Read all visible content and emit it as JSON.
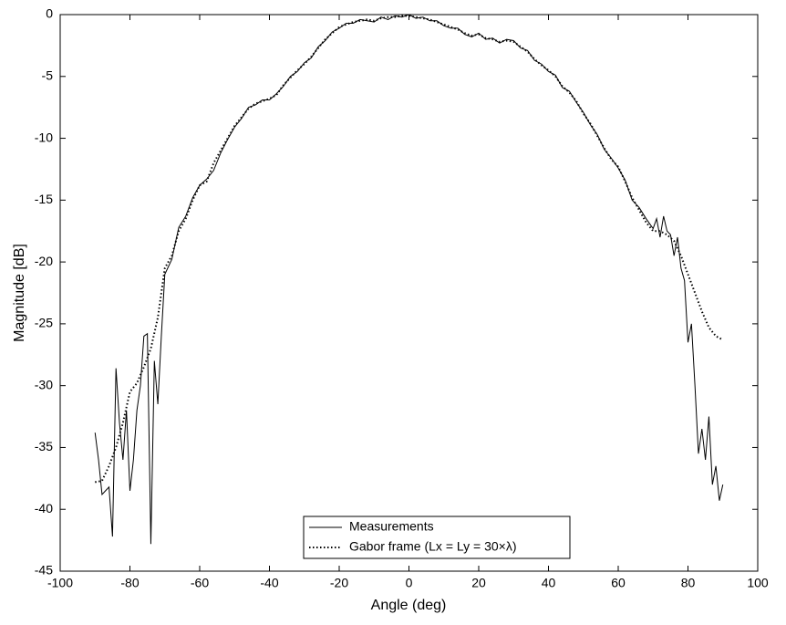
{
  "chart_data": {
    "type": "line",
    "xlabel": "Angle (deg)",
    "ylabel": "Magnitude [dB]",
    "xlim": [
      -100,
      100
    ],
    "xticks": [
      -100,
      -80,
      -60,
      -40,
      -20,
      0,
      20,
      40,
      60,
      80,
      100
    ],
    "ylim": [
      -45,
      0
    ],
    "yticks": [
      -45,
      -40,
      -35,
      -30,
      -25,
      -20,
      -15,
      -10,
      -5,
      0
    ],
    "grid": false,
    "legend": "bottom",
    "series": [
      {
        "name": "Measurements",
        "color": "#000000",
        "style": "solid",
        "x": [
          -90,
          -89,
          -88,
          -87,
          -86,
          -85,
          -84,
          -83,
          -82,
          -81,
          -80,
          -79,
          -78,
          -77,
          -76,
          -75,
          -74,
          -73,
          -72,
          -71,
          -70,
          -68,
          -66,
          -64,
          -62,
          -60,
          -58,
          -56,
          -54,
          -52,
          -50,
          -48,
          -46,
          -44,
          -42,
          -40,
          -38,
          -36,
          -34,
          -32,
          -30,
          -28,
          -26,
          -24,
          -22,
          -20,
          -18,
          -16,
          -14,
          -12,
          -10,
          -8,
          -6,
          -4,
          -2,
          0,
          2,
          4,
          6,
          8,
          10,
          12,
          14,
          16,
          18,
          20,
          22,
          24,
          26,
          28,
          30,
          32,
          34,
          36,
          38,
          40,
          42,
          44,
          46,
          48,
          50,
          52,
          54,
          56,
          58,
          60,
          62,
          64,
          66,
          68,
          70,
          71,
          72,
          73,
          74,
          75,
          76,
          77,
          78,
          79,
          80,
          81,
          82,
          83,
          84,
          85,
          86,
          87,
          88,
          89,
          90
        ],
        "values": [
          -33.8,
          -36,
          -38.8,
          -38.5,
          -38.2,
          -42.2,
          -28.6,
          -33,
          -36,
          -32,
          -38.5,
          -36,
          -32,
          -30,
          -26,
          -25.8,
          -42.8,
          -28,
          -31.5,
          -26,
          -21,
          -19.8,
          -17.2,
          -16.3,
          -14.8,
          -13.8,
          -13.3,
          -12.6,
          -11.2,
          -10.1,
          -9.1,
          -8.4,
          -7.5,
          -7.3,
          -6.9,
          -6.9,
          -6.4,
          -5.8,
          -5,
          -4.6,
          -3.9,
          -3.5,
          -2.6,
          -2.1,
          -1.4,
          -1.1,
          -0.7,
          -0.7,
          -0.4,
          -0.5,
          -0.6,
          -0.2,
          -0.4,
          -0.1,
          -0.2,
          0,
          -0.3,
          -0.2,
          -0.5,
          -0.5,
          -0.9,
          -1.1,
          -1.1,
          -1.6,
          -1.8,
          -1.5,
          -2,
          -1.9,
          -2.3,
          -2,
          -2.1,
          -2.7,
          -2.9,
          -3.7,
          -4,
          -4.6,
          -4.9,
          -5.9,
          -6.2,
          -7.1,
          -7.9,
          -8.9,
          -9.7,
          -10.9,
          -11.6,
          -12.4,
          -13.4,
          -15,
          -15.6,
          -16.5,
          -17.3,
          -16.5,
          -18,
          -16.3,
          -17.5,
          -17.8,
          -19.5,
          -18,
          -20.5,
          -21.5,
          -26.5,
          -25,
          -30,
          -35.5,
          -33.5,
          -36,
          -32.5,
          -38,
          -36.5,
          -39.3,
          -38
        ]
      },
      {
        "name": "Gabor frame (Lx = Ly = 30×λ)",
        "color": "#000000",
        "style": "dotted",
        "x": [
          -90,
          -88,
          -86,
          -84,
          -82,
          -80,
          -78,
          -76,
          -74,
          -72,
          -70,
          -68,
          -66,
          -64,
          -62,
          -60,
          -58,
          -56,
          -54,
          -52,
          -50,
          -48,
          -46,
          -44,
          -42,
          -40,
          -38,
          -36,
          -34,
          -32,
          -30,
          -28,
          -26,
          -24,
          -22,
          -20,
          -18,
          -16,
          -14,
          -12,
          -10,
          -8,
          -6,
          -4,
          -2,
          0,
          2,
          4,
          6,
          8,
          10,
          12,
          14,
          16,
          18,
          20,
          22,
          24,
          26,
          28,
          30,
          32,
          34,
          36,
          38,
          40,
          42,
          44,
          46,
          48,
          50,
          52,
          54,
          56,
          58,
          60,
          62,
          64,
          66,
          68,
          70,
          72,
          74,
          76,
          78,
          80,
          82,
          84,
          86,
          88,
          90
        ],
        "values": [
          -37.8,
          -37.7,
          -36.5,
          -35,
          -33,
          -30.5,
          -29.8,
          -28.5,
          -27,
          -24.5,
          -20.5,
          -19.5,
          -17.5,
          -16.5,
          -15,
          -13.8,
          -13.5,
          -12,
          -11,
          -10,
          -9,
          -8.3,
          -7.6,
          -7.2,
          -7,
          -6.8,
          -6.5,
          -5.7,
          -5.1,
          -4.5,
          -4,
          -3.4,
          -2.7,
          -2,
          -1.5,
          -1,
          -0.8,
          -0.6,
          -0.5,
          -0.4,
          -0.5,
          -0.3,
          -0.2,
          -0.2,
          -0.1,
          -0.1,
          -0.2,
          -0.3,
          -0.4,
          -0.6,
          -0.8,
          -1,
          -1.2,
          -1.5,
          -1.7,
          -1.6,
          -1.9,
          -2,
          -2.2,
          -2.1,
          -2.2,
          -2.6,
          -3,
          -3.6,
          -4.1,
          -4.5,
          -5,
          -5.8,
          -6.3,
          -7,
          -8,
          -8.8,
          -9.8,
          -10.8,
          -11.7,
          -12.3,
          -13.5,
          -14.8,
          -15.8,
          -16.8,
          -17.5,
          -17.5,
          -17.8,
          -18.3,
          -19.5,
          -21,
          -22.5,
          -24,
          -25.3,
          -26,
          -26.3
        ]
      }
    ]
  }
}
